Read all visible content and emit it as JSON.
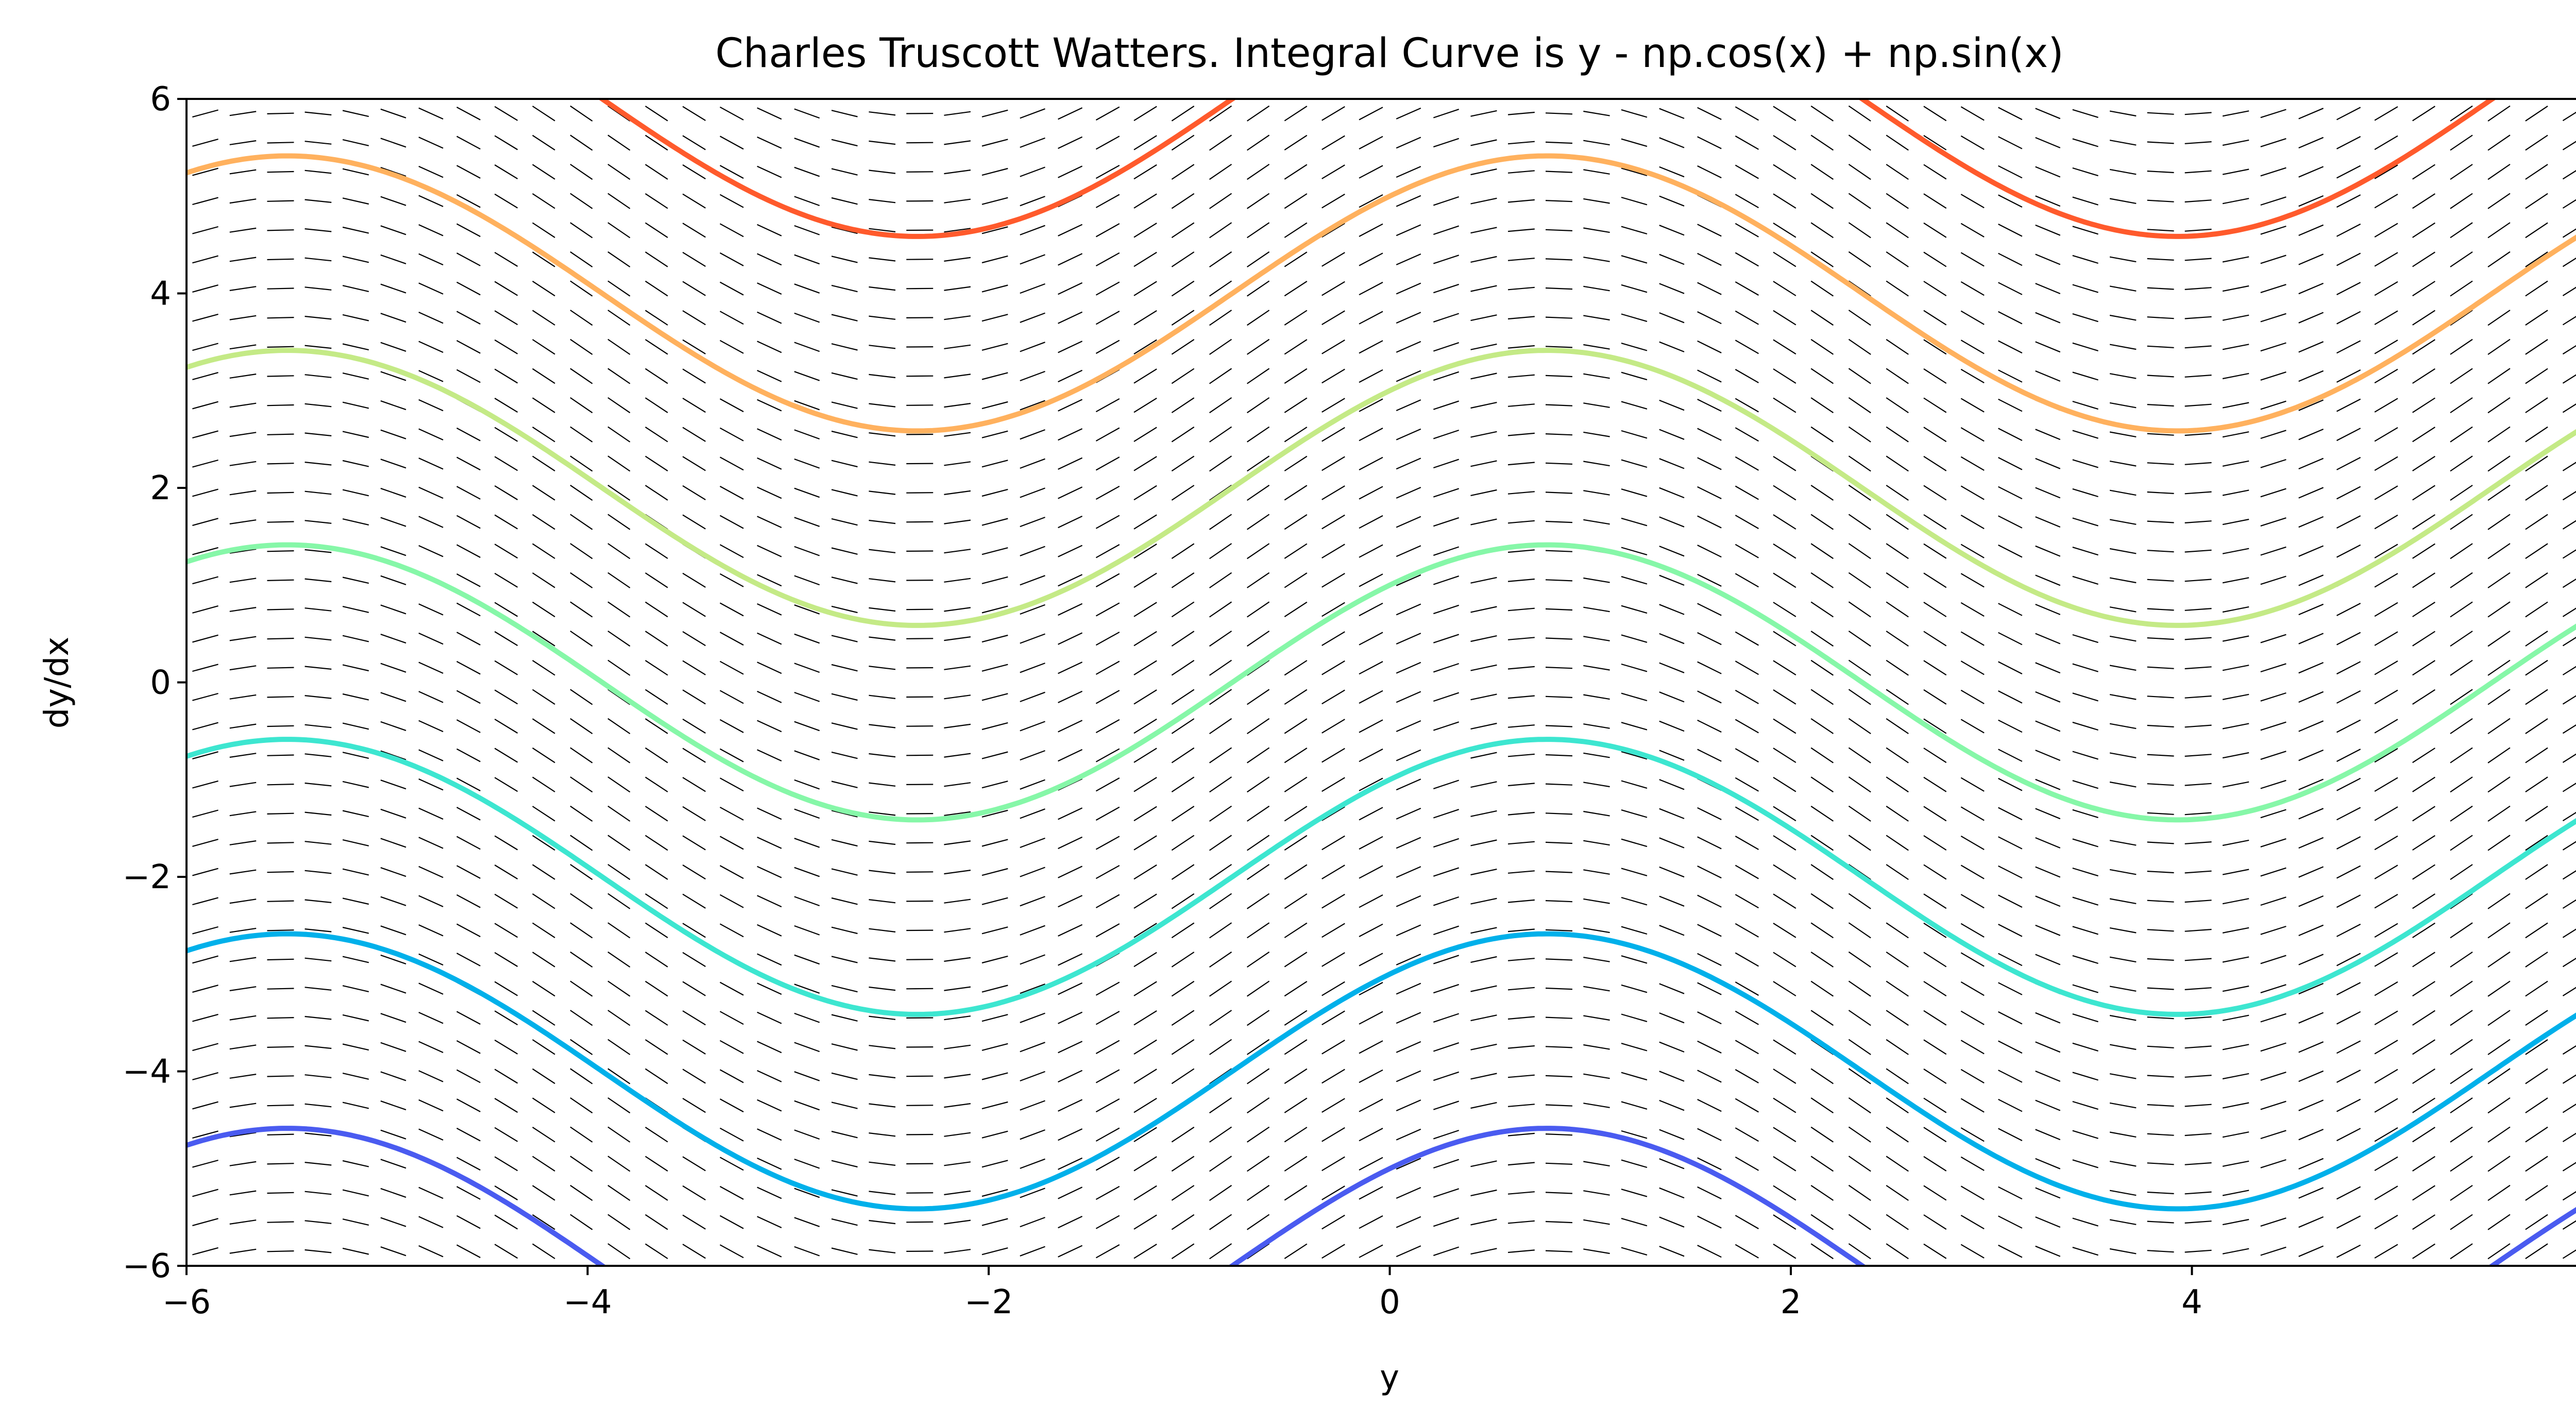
{
  "chart_data": {
    "type": "line",
    "title": "Charles Truscott Watters. Integral Curve is y - np.cos(x) + np.sin(x)",
    "xlabel": "y",
    "ylabel": "dy/dx",
    "xlim": [
      -6,
      6
    ],
    "ylim": [
      -6,
      6
    ],
    "xticks": [
      -6,
      -4,
      -2,
      0,
      2,
      4,
      6
    ],
    "yticks": [
      -6,
      -4,
      -2,
      0,
      2,
      4,
      6
    ],
    "xtick_labels": [
      "−6",
      "−4",
      "−2",
      "0",
      "2",
      "4",
      "6"
    ],
    "ytick_labels": [
      "−6",
      "−4",
      "−2",
      "0",
      "2",
      "4",
      "6"
    ],
    "grid": false,
    "legend": "none",
    "slope_field": {
      "dy_dx": "cos(x) - sin(x)",
      "nx": 64,
      "ny": 40
    },
    "series": [
      {
        "color": "#4a5bf0",
        "offset": -6
      },
      {
        "color": "#00b0ea",
        "offset": -4
      },
      {
        "color": "#3de6d0",
        "offset": -2
      },
      {
        "color": "#86f7a8",
        "offset": 0
      },
      {
        "color": "#c4ea86",
        "offset": 2
      },
      {
        "color": "#ffb15e",
        "offset": 4
      },
      {
        "color": "#ff5a2c",
        "offset": 6
      }
    ]
  }
}
